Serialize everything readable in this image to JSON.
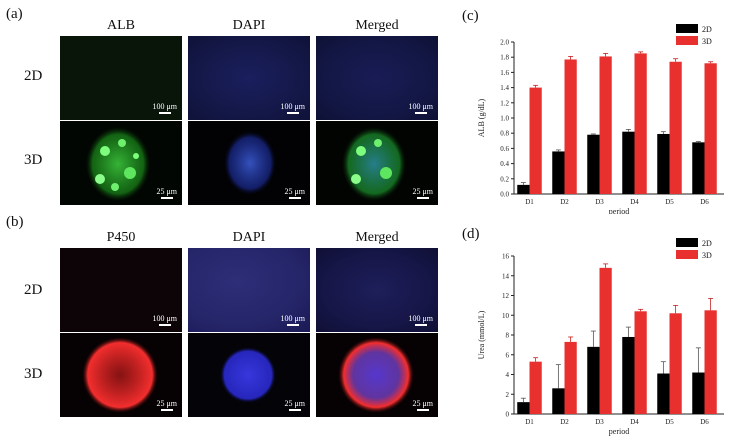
{
  "panels": {
    "a": {
      "label": "(a)",
      "columns": [
        "ALB",
        "DAPI",
        "Merged"
      ],
      "rows": [
        "2D",
        "3D"
      ],
      "scales": [
        [
          "100 μm",
          "100 μm",
          "100 μm"
        ],
        [
          "25 μm",
          "25 μm",
          "25 μm"
        ]
      ]
    },
    "b": {
      "label": "(b)",
      "columns": [
        "P450",
        "DAPI",
        "Merged"
      ],
      "rows": [
        "2D",
        "3D"
      ],
      "scales": [
        [
          "100 μm",
          "100 μm",
          "100 μm"
        ],
        [
          "25 μm",
          "25 μm",
          "25 μm"
        ]
      ]
    }
  },
  "colors": {
    "series_2d": "#000000",
    "series_3d": "#e8312f",
    "green": "#2ecc2e",
    "blue": "#2a2ad8",
    "red": "#e02020"
  },
  "chart_data": [
    {
      "panel": "(c)",
      "type": "bar",
      "categories": [
        "D1",
        "D2",
        "D3",
        "D4",
        "D5",
        "D6"
      ],
      "series": [
        {
          "name": "2D",
          "values": [
            0.12,
            0.56,
            0.78,
            0.82,
            0.79,
            0.68
          ],
          "errors": [
            0.03,
            0.02,
            0.01,
            0.03,
            0.03,
            0.01
          ]
        },
        {
          "name": "3D",
          "values": [
            1.4,
            1.77,
            1.81,
            1.85,
            1.74,
            1.72
          ],
          "errors": [
            0.03,
            0.04,
            0.04,
            0.02,
            0.04,
            0.02
          ]
        }
      ],
      "xlabel": "period",
      "ylabel": "ALB (g/dL)",
      "ylim": [
        0,
        2.0
      ],
      "yticks": [
        "0.0",
        "0.2",
        "0.4",
        "0.6",
        "0.8",
        "1.0",
        "1.2",
        "1.4",
        "1.6",
        "1.8",
        "2.0"
      ],
      "legend": "top-right"
    },
    {
      "panel": "(d)",
      "type": "bar",
      "categories": [
        "D1",
        "D2",
        "D3",
        "D4",
        "D5",
        "D6"
      ],
      "series": [
        {
          "name": "2D",
          "values": [
            1.2,
            2.6,
            6.8,
            7.8,
            4.1,
            4.2
          ],
          "errors": [
            0.4,
            2.4,
            1.6,
            1.0,
            1.2,
            2.5
          ]
        },
        {
          "name": "3D",
          "values": [
            5.3,
            7.3,
            14.8,
            10.4,
            10.2,
            10.5
          ],
          "errors": [
            0.4,
            0.5,
            0.4,
            0.2,
            0.8,
            1.2
          ]
        }
      ],
      "xlabel": "period",
      "ylabel": "Urea (mmol/L)",
      "ylim": [
        0,
        16
      ],
      "yticks": [
        "0",
        "2",
        "4",
        "6",
        "8",
        "10",
        "12",
        "14",
        "16"
      ],
      "legend": "top-right"
    }
  ]
}
